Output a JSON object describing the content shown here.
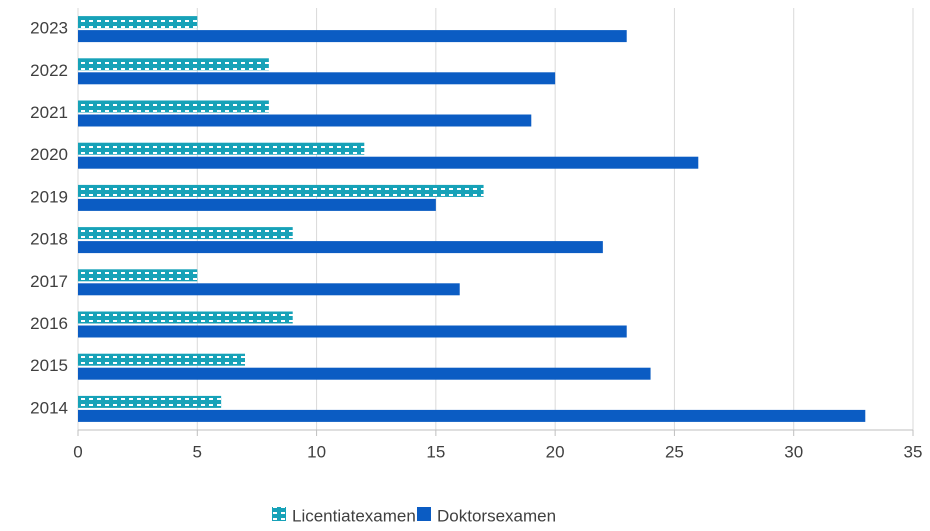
{
  "chart_data": {
    "type": "bar",
    "orientation": "horizontal",
    "categories": [
      "2014",
      "2015",
      "2016",
      "2017",
      "2018",
      "2019",
      "2020",
      "2021",
      "2022",
      "2023"
    ],
    "series": [
      {
        "name": "Licentiatexamen",
        "color": "#17a2b8",
        "pattern": "dash",
        "values": [
          6,
          7,
          9,
          5,
          9,
          17,
          12,
          8,
          8,
          5
        ]
      },
      {
        "name": "Doktorsexamen",
        "color": "#0b5cc3",
        "values": [
          33,
          24,
          23,
          16,
          22,
          15,
          26,
          19,
          20,
          23
        ]
      }
    ],
    "xlim": [
      0,
      35
    ],
    "xticks": [
      0,
      5,
      10,
      15,
      20,
      25,
      30,
      35
    ],
    "grid": true,
    "legend": "bottom"
  }
}
